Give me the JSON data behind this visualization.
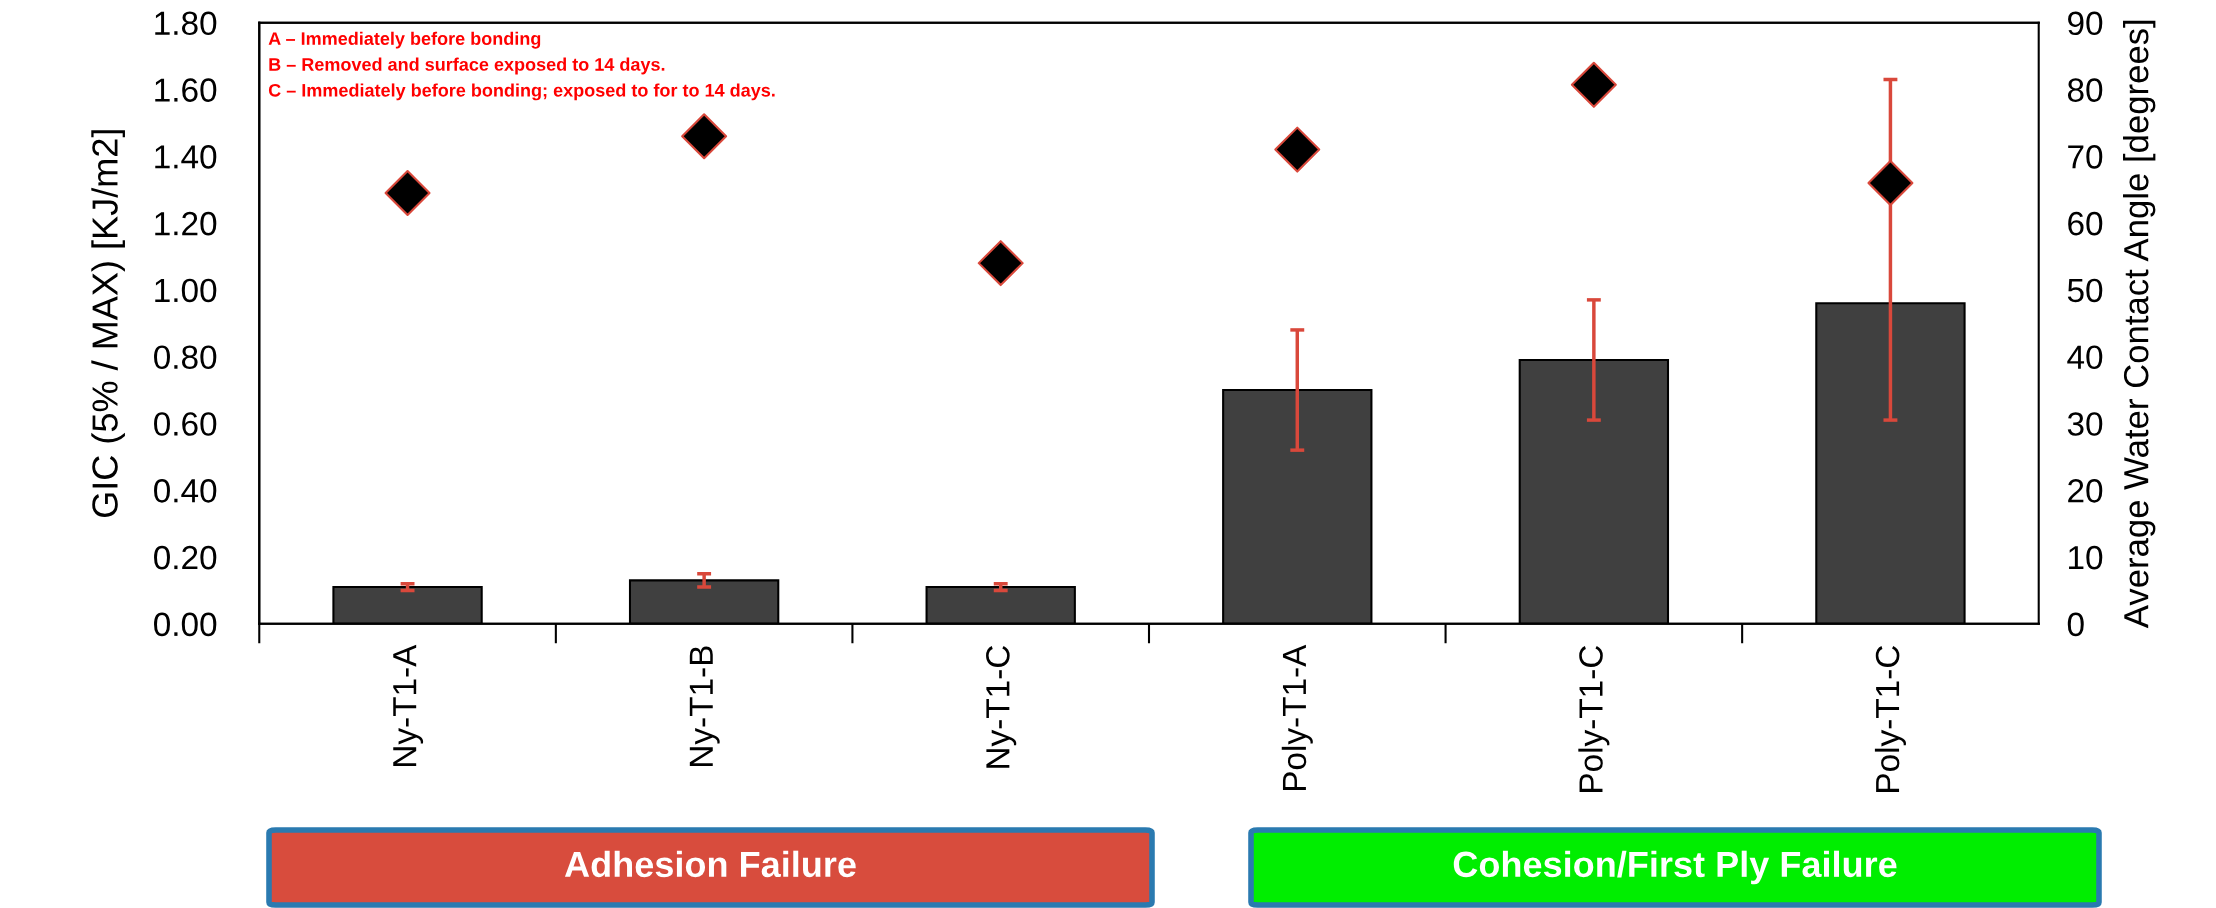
{
  "chart_data": {
    "type": "bar",
    "ylabel": "GIC (5% / MAX) [KJ/m2]",
    "y2label": "Average Water Contact Angle [degrees]",
    "categories": [
      "Ny-T1-A",
      "Ny-T1-B",
      "Ny-T1-C",
      "Poly-T1-A",
      "Poly-T1-C",
      "Poly-T1-C"
    ],
    "series": [
      {
        "color": "#404040",
        "values": [
          0.11,
          0.13,
          0.11,
          0.7,
          0.79,
          0.96
        ],
        "errors": [
          0.01,
          0.02,
          0.01,
          0.18,
          0.18,
          [
            0.61,
            1.63
          ]
        ]
      },
      {
        "type": "scatter",
        "axis": "y2",
        "color": "#000000",
        "marker": "diamond",
        "values": [
          64.5,
          73,
          54,
          71,
          80.7,
          66
        ]
      }
    ],
    "ylim": [
      0,
      1.8
    ],
    "yticks": [
      {
        "value": 0,
        "label": "0.00"
      },
      {
        "value": 0.2,
        "label": "0.20"
      },
      {
        "value": 0.4,
        "label": "0.40"
      },
      {
        "value": 0.6,
        "label": "0.60"
      },
      {
        "value": 0.8,
        "label": "0.80"
      },
      {
        "value": 1.0,
        "label": "1.00"
      },
      {
        "value": 1.2,
        "label": "1.20"
      },
      {
        "value": 1.4,
        "label": "1.40"
      },
      {
        "value": 1.6,
        "label": "1.60"
      },
      {
        "value": 1.8,
        "label": "1.80"
      }
    ],
    "y2lim": [
      0,
      90
    ],
    "y2ticks": [
      0,
      10,
      20,
      30,
      40,
      50,
      60,
      70,
      80,
      90
    ],
    "grid": false,
    "annotations": [
      "A – Immediately before bonding",
      "B – Removed and surface exposed to 14 days.",
      "C – Immediately before bonding; exposed to for to 14 days.",
      "Adhesion Failure",
      "Cohesion/First Ply Failure"
    ]
  }
}
